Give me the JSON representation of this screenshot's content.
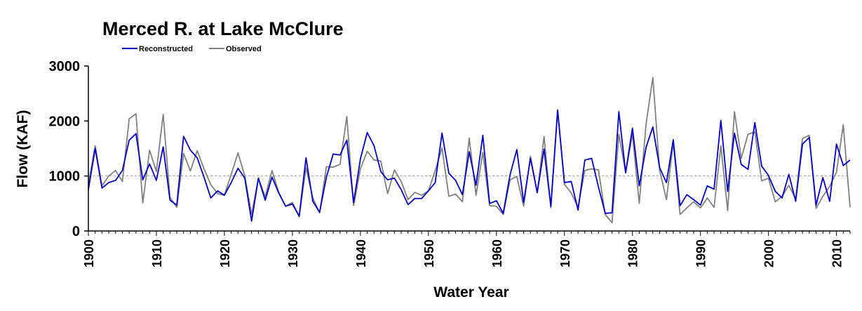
{
  "chart_data": {
    "type": "line",
    "title": "Merced R. at Lake McClure",
    "xlabel": "Water Year",
    "ylabel": "Flow (KAF)",
    "xlim": [
      1900,
      2012
    ],
    "ylim": [
      0,
      3000
    ],
    "yticks": [
      "0",
      "1000",
      "2000",
      "3000"
    ],
    "xticks": [
      "1900",
      "1910",
      "1920",
      "1930",
      "1940",
      "1950",
      "1960",
      "1970",
      "1980",
      "1990",
      "2000",
      "2010"
    ],
    "reference_line": 1000,
    "legend_position": "top-left",
    "series": [
      {
        "name": "Reconstructed",
        "color": "#0000cc",
        "x_start": 1900,
        "values": [
          750,
          1500,
          780,
          880,
          920,
          1100,
          1650,
          1770,
          930,
          1220,
          920,
          1530,
          560,
          470,
          1720,
          1470,
          1330,
          980,
          600,
          730,
          650,
          880,
          1140,
          960,
          180,
          960,
          560,
          980,
          690,
          450,
          490,
          270,
          1330,
          540,
          340,
          980,
          1400,
          1380,
          1650,
          520,
          1310,
          1790,
          1550,
          1080,
          930,
          960,
          750,
          480,
          590,
          590,
          730,
          880,
          1780,
          1050,
          920,
          660,
          1440,
          830,
          1740,
          500,
          550,
          320,
          1020,
          1480,
          520,
          1320,
          700,
          1490,
          450,
          2190,
          880,
          900,
          380,
          1290,
          1320,
          800,
          320,
          330,
          2170,
          1060,
          1870,
          820,
          1520,
          1890,
          1150,
          880,
          1660,
          460,
          660,
          570,
          470,
          820,
          760,
          2010,
          720,
          1780,
          1210,
          1120,
          1970,
          1180,
          1010,
          720,
          600,
          1030,
          540,
          1580,
          1700,
          470,
          970,
          540,
          1580,
          1190,
          1290
        ]
      },
      {
        "name": "Observed",
        "color": "#808080",
        "x_start": 1900,
        "values": [
          850,
          1550,
          820,
          1000,
          1100,
          900,
          2040,
          2130,
          510,
          1470,
          1080,
          2120,
          610,
          430,
          1410,
          1090,
          1460,
          1130,
          840,
          680,
          650,
          1030,
          1420,
          1000,
          300,
          960,
          620,
          1100,
          700,
          450,
          520,
          260,
          1150,
          600,
          330,
          1170,
          1160,
          1210,
          2080,
          460,
          1130,
          1450,
          1290,
          1270,
          680,
          1110,
          900,
          570,
          700,
          650,
          730,
          1100,
          1510,
          630,
          670,
          530,
          1690,
          650,
          1430,
          460,
          450,
          300,
          930,
          990,
          450,
          1360,
          690,
          1720,
          420,
          2210,
          850,
          690,
          430,
          1100,
          1130,
          1110,
          300,
          150,
          1760,
          1060,
          1760,
          500,
          1940,
          2790,
          1100,
          570,
          1610,
          300,
          420,
          530,
          420,
          600,
          430,
          1550,
          370,
          2170,
          1320,
          1760,
          1800,
          910,
          960,
          530,
          630,
          830,
          580,
          1680,
          1740,
          410,
          630,
          810,
          1070,
          1930,
          430
        ]
      }
    ]
  }
}
